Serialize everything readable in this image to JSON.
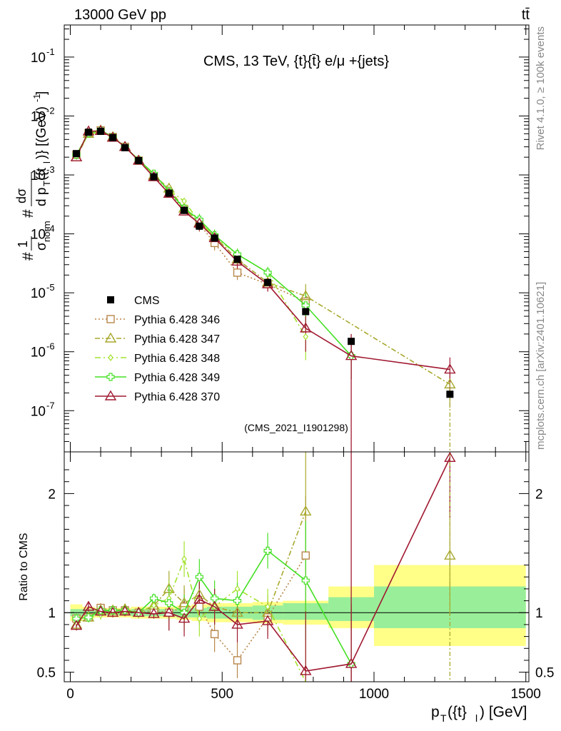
{
  "header": {
    "left": "13000 GeV pp",
    "right": "tt̄"
  },
  "side_labels": {
    "rivet": "Rivet 4.1.0, ≥ 100k events",
    "mcplots": "mcplots.cern.ch [arXiv:2401.10621]"
  },
  "colors": {
    "cms": "#000000",
    "p346": "#b8864a",
    "p347": "#a8a82e",
    "p348": "#a3e22e",
    "p349": "#44e024",
    "p370": "#a01830",
    "band_yellow": "#ffff88",
    "band_green": "#99ee99"
  },
  "chart_data": [
    {
      "type": "line",
      "panel": "main",
      "title": "CMS, 13 TeV, {t}{t̄} e/μ +{jets}",
      "watermark": "(CMS_2021_I1901298)",
      "ylabel": "#1/σ_norm # dσ/d p_T({t}_l) [(GeV)^-1]",
      "yscale": "log",
      "xlim": [
        -20,
        1510
      ],
      "ylim": [
        2e-08,
        0.35
      ],
      "yticks": [
        {
          "v": 1e-07,
          "label": "10",
          "exp": "-7"
        },
        {
          "v": 1e-06,
          "label": "10",
          "exp": "-6"
        },
        {
          "v": 1e-05,
          "label": "10",
          "exp": "-5"
        },
        {
          "v": 0.0001,
          "label": "10",
          "exp": "-4"
        },
        {
          "v": 0.001,
          "label": "10",
          "exp": "-3"
        },
        {
          "v": 0.01,
          "label": "10",
          "exp": "-2"
        },
        {
          "v": 0.1,
          "label": "10",
          "exp": "-1"
        }
      ],
      "x": [
        20,
        60,
        100,
        140,
        180,
        225,
        275,
        325,
        375,
        425,
        475,
        550,
        650,
        775,
        925,
        1250
      ],
      "series": [
        {
          "name": "CMS",
          "style": "data",
          "values": [
            0.0023,
            0.0053,
            0.0055,
            0.0043,
            0.0029,
            0.00175,
            0.00093,
            0.00049,
            0.00025,
            0.000135,
            8.5e-05,
            3.7e-05,
            1.5e-05,
            4.8e-06,
            1.5e-06,
            1.9e-07
          ]
        },
        {
          "name": "Pythia 6.428 346",
          "style": "p346",
          "values": [
            0.0022,
            0.0051,
            0.0057,
            0.0044,
            0.003,
            0.00175,
            0.00094,
            0.00049,
            0.00026,
            0.000145,
            7e-05,
            2.2e-05,
            1.4e-05,
            7.1e-06,
            null,
            null
          ]
        },
        {
          "name": "Pythia 6.428 347",
          "style": "p347",
          "values": [
            0.002,
            0.005,
            0.0057,
            0.0044,
            0.003,
            0.00175,
            0.00098,
            0.00059,
            0.00027,
            0.000155,
            9e-05,
            3.7e-05,
            1.5e-05,
            8.8e-06,
            null,
            2.8e-07
          ]
        },
        {
          "name": "Pythia 6.428 348",
          "style": "p348",
          "values": [
            0.0022,
            0.0049,
            0.0054,
            0.0044,
            0.003,
            0.0018,
            0.001,
            0.00055,
            0.00036,
            0.00016,
            9e-05,
            4.5e-05,
            2.2e-05,
            1.8e-06,
            null,
            null
          ]
        },
        {
          "name": "Pythia 6.428 349",
          "style": "p349",
          "values": [
            0.0022,
            0.0051,
            0.0057,
            0.0044,
            0.003,
            0.0018,
            0.00105,
            0.00053,
            0.00027,
            0.000175,
            9.5e-05,
            4.5e-05,
            2.2e-05,
            6.1e-06,
            8.5e-07,
            null
          ]
        },
        {
          "name": "Pythia 6.428 370",
          "style": "p370",
          "values": [
            0.002,
            0.0055,
            0.0056,
            0.0043,
            0.003,
            0.00175,
            0.00092,
            0.00048,
            0.00024,
            0.00015,
            8.5e-05,
            3.4e-05,
            1.4e-05,
            2.5e-06,
            8.5e-07,
            5e-07
          ]
        }
      ],
      "legend": [
        "CMS",
        "Pythia 6.428 346",
        "Pythia 6.428 347",
        "Pythia 6.428 348",
        "Pythia 6.428 349",
        "Pythia 6.428 370"
      ]
    },
    {
      "type": "line",
      "panel": "ratio",
      "ylabel": "Ratio to CMS",
      "xlabel": "p_T({t}_l) [GeV]",
      "xlim": [
        -20,
        1510
      ],
      "ylim": [
        0.42,
        2.35
      ],
      "xticks": [
        0,
        500,
        1000,
        1500
      ],
      "yticks": [
        0.5,
        1,
        2
      ],
      "bands": {
        "edges": [
          0,
          40,
          80,
          120,
          160,
          200,
          250,
          300,
          350,
          400,
          450,
          500,
          600,
          700,
          850,
          1000,
          1500
        ],
        "yellow": [
          [
            0.93,
            1.07
          ],
          [
            0.95,
            1.05
          ],
          [
            0.96,
            1.04
          ],
          [
            0.96,
            1.04
          ],
          [
            0.96,
            1.04
          ],
          [
            0.95,
            1.05
          ],
          [
            0.95,
            1.05
          ],
          [
            0.95,
            1.05
          ],
          [
            0.94,
            1.06
          ],
          [
            0.93,
            1.07
          ],
          [
            0.92,
            1.08
          ],
          [
            0.92,
            1.08
          ],
          [
            0.91,
            1.09
          ],
          [
            0.9,
            1.1
          ],
          [
            0.87,
            1.22
          ],
          [
            0.72,
            1.4
          ]
        ],
        "green": [
          [
            0.97,
            1.03
          ],
          [
            0.97,
            1.03
          ],
          [
            0.98,
            1.02
          ],
          [
            0.98,
            1.02
          ],
          [
            0.98,
            1.02
          ],
          [
            0.97,
            1.03
          ],
          [
            0.97,
            1.03
          ],
          [
            0.97,
            1.03
          ],
          [
            0.96,
            1.04
          ],
          [
            0.96,
            1.04
          ],
          [
            0.95,
            1.05
          ],
          [
            0.95,
            1.05
          ],
          [
            0.94,
            1.06
          ],
          [
            0.94,
            1.08
          ],
          [
            0.93,
            1.13
          ],
          [
            0.87,
            1.22
          ]
        ]
      },
      "series": [
        {
          "name": "Pythia 6.428 346",
          "style": "p346",
          "values": [
            0.95,
            0.96,
            1.04,
            1.02,
            1.02,
            1.0,
            1.02,
            1.0,
            1.05,
            1.05,
            0.82,
            0.6,
            0.96,
            1.48,
            null,
            null
          ]
        },
        {
          "name": "Pythia 6.428 347",
          "style": "p347",
          "values": [
            0.9,
            0.96,
            1.02,
            1.02,
            1.03,
            1.0,
            1.06,
            1.2,
            1.08,
            1.15,
            1.05,
            1.0,
            1.0,
            1.85,
            null,
            1.48
          ]
        },
        {
          "name": "Pythia 6.428 348",
          "style": "p348",
          "values": [
            0.92,
            0.96,
            0.98,
            1.02,
            1.02,
            0.99,
            1.06,
            1.12,
            1.45,
            0.95,
            1.05,
            1.2,
            1.05,
            0.4,
            null,
            null
          ]
        },
        {
          "name": "Pythia 6.428 349",
          "style": "p349",
          "values": [
            0.95,
            0.96,
            1.02,
            1.02,
            1.02,
            1.0,
            1.12,
            1.08,
            1.0,
            1.3,
            1.12,
            1.1,
            1.52,
            1.27,
            0.57,
            null
          ]
        },
        {
          "name": "Pythia 6.428 370",
          "style": "p370",
          "values": [
            0.89,
            1.05,
            1.01,
            1.0,
            1.01,
            1.0,
            0.99,
            1.0,
            0.95,
            1.11,
            1.05,
            0.9,
            0.93,
            0.51,
            0.57,
            2.3
          ]
        }
      ]
    }
  ]
}
